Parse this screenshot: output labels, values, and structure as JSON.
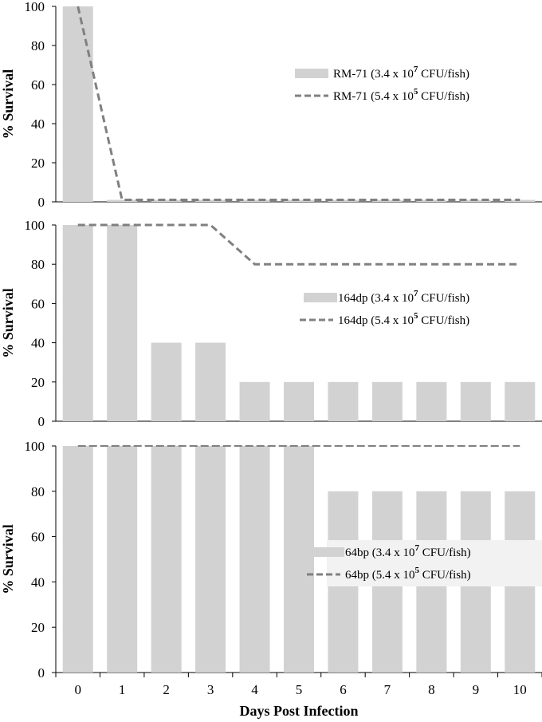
{
  "chart_data": [
    {
      "type": "bar",
      "ylabel": "% Survival",
      "ylim": [
        0,
        100
      ],
      "yticks": [
        0,
        20,
        40,
        60,
        80,
        100
      ],
      "categories": [
        0,
        1,
        2,
        3,
        4,
        5,
        6,
        7,
        8,
        9,
        10
      ],
      "series": [
        {
          "name": "RM-71 (3.4 x 10",
          "exp": "7",
          "name_tail": " CFU/fish)",
          "kind": "bar",
          "color": "#d2d2d2",
          "values": [
            100,
            1,
            1,
            1,
            1,
            1,
            1,
            1,
            1,
            1,
            1
          ]
        },
        {
          "name": "RM-71 (5.4 x 10",
          "exp": "5",
          "name_tail": " CFU/fish)",
          "kind": "dashed-line",
          "color": "#808080",
          "values": [
            100,
            1,
            1,
            1,
            1,
            1,
            1,
            1,
            1,
            1,
            1
          ]
        }
      ],
      "legend_position": "upper-right"
    },
    {
      "type": "bar",
      "ylabel": "% Survival",
      "ylim": [
        0,
        100
      ],
      "yticks": [
        0,
        20,
        40,
        60,
        80,
        100
      ],
      "categories": [
        0,
        1,
        2,
        3,
        4,
        5,
        6,
        7,
        8,
        9,
        10
      ],
      "series": [
        {
          "name": "164dp (3.4 x 10",
          "exp": "7",
          "name_tail": "  CFU/fish)",
          "kind": "bar",
          "color": "#d2d2d2",
          "values": [
            100,
            100,
            40,
            40,
            20,
            20,
            20,
            20,
            20,
            20,
            20
          ]
        },
        {
          "name": "164dp (5.4 x 10",
          "exp": "5",
          "name_tail": "  CFU/fish)",
          "kind": "dashed-line",
          "color": "#808080",
          "values": [
            100,
            100,
            100,
            100,
            80,
            80,
            80,
            80,
            80,
            80,
            80
          ]
        }
      ],
      "legend_position": "middle-right"
    },
    {
      "type": "bar",
      "ylabel": "% Survival",
      "xlabel": "Days Post Infection",
      "ylim": [
        0,
        100
      ],
      "yticks": [
        0,
        20,
        40,
        60,
        80,
        100
      ],
      "categories": [
        0,
        1,
        2,
        3,
        4,
        5,
        6,
        7,
        8,
        9,
        10
      ],
      "series": [
        {
          "name": "64bp (3.4 x 10",
          "exp": "7",
          "name_tail": "  CFU/fish)",
          "kind": "bar",
          "color": "#d2d2d2",
          "values": [
            100,
            100,
            100,
            100,
            100,
            100,
            80,
            80,
            80,
            80,
            80
          ]
        },
        {
          "name": "64bp (5.4 x 10",
          "exp": "5",
          "name_tail": "  CFU/fish)",
          "kind": "dashed-line",
          "color": "#808080",
          "values": [
            100,
            100,
            100,
            100,
            100,
            100,
            100,
            100,
            100,
            100,
            100
          ]
        }
      ],
      "legend_position": "middle-right"
    }
  ]
}
